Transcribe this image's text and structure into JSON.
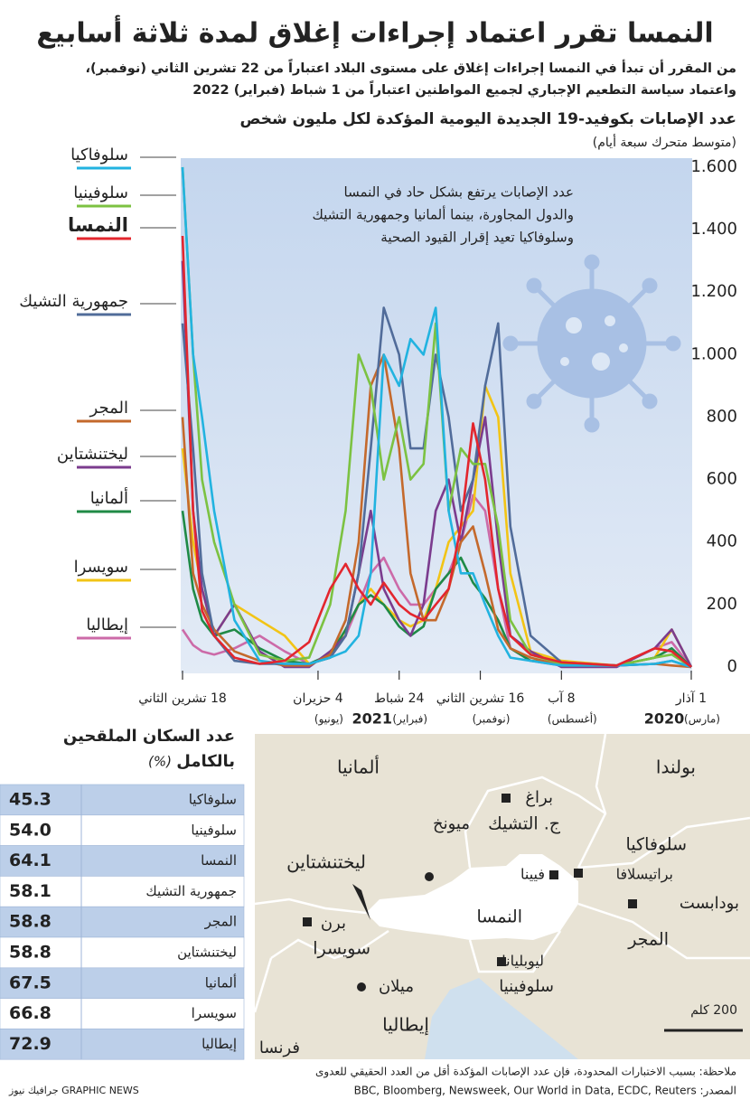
{
  "title": "النمسا تقرر اعتماد إجراءات إغلاق لمدة ثلاثة أسابيع",
  "subtitle": [
    "من المقرر أن تبدأ في النمسا إجراءات إغلاق على مستوى البلاد اعتباراً من 22 تشرين الثاني (نوفمبر)،",
    "واعتماد سياسة التطعيم الإجباري لجميع المواطنين اعتباراً من 1 شباط (فبراير) 2022"
  ],
  "chart_data": {
    "type": "line",
    "title": "عدد الإصابات بكوفيد-19 الجديدة اليومية المؤكدة لكل مليون شخص",
    "subtitle": "(متوسط متحرك سبعة أيام)",
    "annotation": [
      "عدد الإصابات يرتفع بشكل حاد في النمسا",
      "والدول المجاورة، بينما ألمانيا وجمهورية التشيك",
      "وسلوفاكيا تعيد إقرار القيود الصحية"
    ],
    "x": [
      "2020-03-01",
      "2020-03-25",
      "2020-04-15",
      "2020-06-01",
      "2020-08-08",
      "2020-09-15",
      "2020-10-10",
      "2020-10-25",
      "2020-11-10",
      "2020-11-25",
      "2020-12-10",
      "2020-12-25",
      "2021-01-10",
      "2021-01-25",
      "2021-02-10",
      "2021-02-24",
      "2021-03-15",
      "2021-03-31",
      "2021-04-15",
      "2021-05-01",
      "2021-05-20",
      "2021-06-15",
      "2021-07-15",
      "2021-08-15",
      "2021-09-15",
      "2021-10-10",
      "2021-10-25",
      "2021-11-05",
      "2021-11-18"
    ],
    "xlim": [
      "2020-03-01",
      "2021-11-18"
    ],
    "xticks": [
      {
        "value": "2020-03-01",
        "label": "1 آذار",
        "sub": "(مارس)",
        "year": "2020"
      },
      {
        "value": "2020-08-08",
        "label": "8 آب",
        "sub": "(أغسطس)"
      },
      {
        "value": "2020-11-16",
        "label": "16 تشرين الثاني",
        "sub": "(نوفمبر)"
      },
      {
        "value": "2021-02-24",
        "label": "24 شباط",
        "sub": "(فبراير)",
        "year": "2021"
      },
      {
        "value": "2021-06-04",
        "label": "4 حزيران",
        "sub": "(يونيو)"
      },
      {
        "value": "2021-11-18",
        "label": "18 تشرين الثاني"
      }
    ],
    "ylim": [
      0,
      1600
    ],
    "yticks": [
      0,
      200,
      400,
      600,
      800,
      {
        "value": 1000,
        "label": "1.000"
      },
      {
        "value": 1200,
        "label": "1.200"
      },
      {
        "value": 1400,
        "label": "1.400"
      },
      {
        "value": 1600,
        "label": "1.600"
      }
    ],
    "grid": false,
    "series": [
      {
        "name": "سلوفاكيا",
        "color": "#22b3e0",
        "values": [
          0,
          20,
          10,
          5,
          5,
          20,
          30,
          100,
          200,
          300,
          300,
          500,
          1150,
          1000,
          1050,
          900,
          1000,
          300,
          100,
          50,
          30,
          10,
          10,
          20,
          150,
          500,
          800,
          1000,
          1600
        ]
      },
      {
        "name": "سلوفينيا",
        "color": "#7cc242",
        "values": [
          0,
          40,
          30,
          5,
          10,
          40,
          150,
          450,
          650,
          650,
          700,
          500,
          1100,
          650,
          600,
          800,
          600,
          900,
          1000,
          500,
          200,
          30,
          20,
          40,
          200,
          400,
          600,
          1000,
          1600
        ]
      },
      {
        "name": "النمسا",
        "color": "#e3262e",
        "values": [
          0,
          50,
          60,
          5,
          15,
          40,
          100,
          250,
          600,
          780,
          450,
          250,
          200,
          150,
          170,
          200,
          270,
          200,
          250,
          330,
          250,
          80,
          20,
          10,
          30,
          100,
          180,
          500,
          1380
        ]
      },
      {
        "name": "جمهورية التشيك",
        "color": "#516c9a",
        "values": [
          0,
          20,
          10,
          5,
          15,
          100,
          450,
          1100,
          900,
          600,
          500,
          800,
          1000,
          700,
          700,
          1000,
          1150,
          700,
          300,
          100,
          30,
          10,
          10,
          10,
          20,
          100,
          300,
          700,
          1100
        ]
      },
      {
        "name": "المجر",
        "color": "#c4692c",
        "values": [
          0,
          5,
          10,
          5,
          5,
          30,
          60,
          120,
          300,
          450,
          400,
          250,
          150,
          150,
          300,
          700,
          1000,
          900,
          400,
          150,
          40,
          5,
          5,
          20,
          50,
          120,
          200,
          300,
          800
        ]
      },
      {
        "name": "ليختنشتاين",
        "color": "#7b3c8e",
        "values": [
          0,
          120,
          60,
          0,
          0,
          50,
          100,
          400,
          800,
          600,
          400,
          600,
          500,
          200,
          100,
          150,
          250,
          500,
          300,
          100,
          50,
          0,
          0,
          50,
          200,
          100,
          250,
          500,
          1300
        ]
      },
      {
        "name": "ألمانيا",
        "color": "#1f8a46",
        "values": [
          0,
          60,
          30,
          5,
          10,
          20,
          60,
          150,
          220,
          270,
          350,
          300,
          250,
          130,
          100,
          130,
          200,
          230,
          200,
          120,
          40,
          10,
          20,
          60,
          120,
          100,
          150,
          250,
          500
        ]
      },
      {
        "name": "سويسرا",
        "color": "#f2c416",
        "values": [
          0,
          120,
          30,
          5,
          20,
          50,
          300,
          800,
          900,
          500,
          450,
          400,
          250,
          150,
          130,
          150,
          200,
          250,
          200,
          120,
          30,
          10,
          100,
          150,
          200,
          100,
          250,
          400,
          700
        ]
      },
      {
        "name": "إيطاليا",
        "color": "#cc6aa8",
        "values": [
          0,
          80,
          60,
          5,
          5,
          20,
          60,
          250,
          500,
          550,
          400,
          300,
          250,
          200,
          200,
          250,
          350,
          300,
          200,
          100,
          30,
          10,
          50,
          100,
          60,
          40,
          50,
          70,
          120
        ]
      }
    ]
  },
  "table": {
    "title": [
      "عدد السكان الملقحين",
      "بالكامل"
    ],
    "unit": "(%)",
    "rows": [
      [
        "سلوفاكيا",
        "45.3"
      ],
      [
        "سلوفينيا",
        "54.0"
      ],
      [
        "النمسا",
        "64.1"
      ],
      [
        "جمهورية التشيك",
        "58.1"
      ],
      [
        "المجر",
        "58.8"
      ],
      [
        "ليختنشتاين",
        "58.8"
      ],
      [
        "ألمانيا",
        "67.5"
      ],
      [
        "سويسرا",
        "66.8"
      ],
      [
        "إيطاليا",
        "72.9"
      ]
    ]
  },
  "map": {
    "labels": [
      "ألمانيا",
      "بولندا",
      "براغ",
      "ج. التشيك",
      "سلوفاكيا",
      "ميونخ",
      "ليختنشتاين",
      "فيينا",
      "براتيسلافا",
      "النمسا",
      "بودابست",
      "المجر",
      "برن",
      "سويسرا",
      "ليوبليانا",
      "سلوفينيا",
      "ميلان",
      "إيطاليا",
      "فرنسا"
    ],
    "scale": "200 كلم"
  },
  "notes": {
    "note": "ملاحظة: بسبب الاختبارات المحدودة، فإن عدد الإصابات المؤكدة أقل من العدد الحقيقي للعدوى",
    "source": "المصدر: BBC, Bloomberg, Newsweek, Our World in Data, ECDC, Reuters",
    "credit": "GRAPHIC NEWS جرافيك نيوز"
  }
}
